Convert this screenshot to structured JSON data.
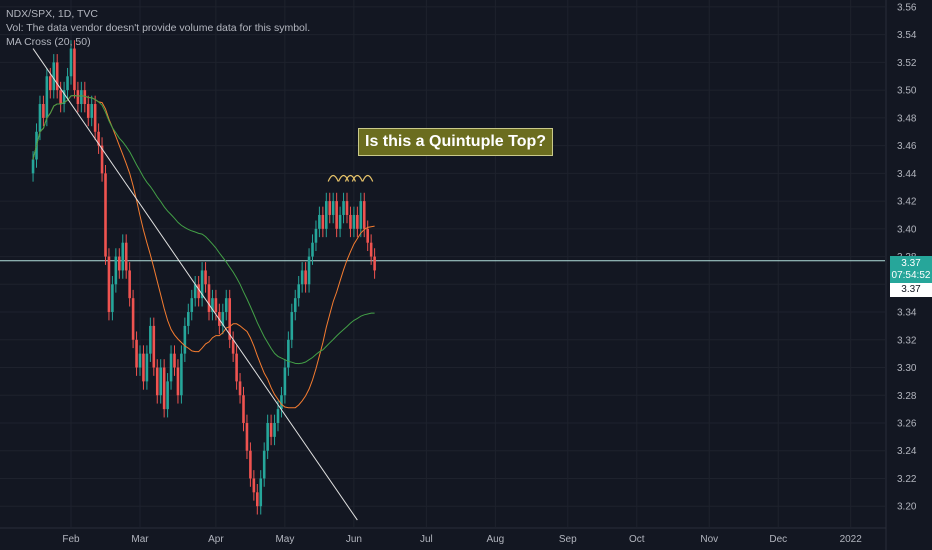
{
  "legend": {
    "symbol_line": "NDX/SPX, 1D, TVC",
    "volume_line": "Vol: The data vendor doesn't provide volume data for this symbol.",
    "ma_line": "MA Cross (20, 50)"
  },
  "annotation": {
    "text": "Is this a Quintuple Top?"
  },
  "price_tags": {
    "current": "3.37",
    "countdown": "07:54:52",
    "secondary": "3.37"
  },
  "colors": {
    "background": "#131722",
    "grid": "#1e222d",
    "up": "#26a69a",
    "down": "#ef5350",
    "ma_fast": "#f57c30",
    "ma_slow": "#43a047",
    "trendline": "#e0e0e0",
    "price_line": "#b2dfdb"
  },
  "chart_data": {
    "type": "candlestick",
    "title": "NDX/SPX, 1D, TVC",
    "y_axis": {
      "range": [
        3.185,
        3.565
      ],
      "ticks": [
        "3.56",
        "3.54",
        "3.52",
        "3.50",
        "3.48",
        "3.46",
        "3.44",
        "3.42",
        "3.40",
        "3.38",
        "3.36",
        "3.34",
        "3.32",
        "3.30",
        "3.28",
        "3.26",
        "3.24",
        "3.22",
        "3.20"
      ]
    },
    "x_axis": {
      "ticks": [
        {
          "label": "Feb",
          "day": 20
        },
        {
          "label": "Mar",
          "day": 40
        },
        {
          "label": "Apr",
          "day": 62
        },
        {
          "label": "May",
          "day": 82
        },
        {
          "label": "Jun",
          "day": 102
        },
        {
          "label": "Jul",
          "day": 123
        },
        {
          "label": "Aug",
          "day": 143
        },
        {
          "label": "Sep",
          "day": 164
        },
        {
          "label": "Oct",
          "day": 184
        },
        {
          "label": "Nov",
          "day": 205
        },
        {
          "label": "Dec",
          "day": 225
        },
        {
          "label": "2022",
          "day": 246
        }
      ]
    },
    "closes": [
      [
        9,
        3.45
      ],
      [
        10,
        3.47
      ],
      [
        11,
        3.49
      ],
      [
        12,
        3.48
      ],
      [
        13,
        3.51
      ],
      [
        14,
        3.5
      ],
      [
        15,
        3.52
      ],
      [
        16,
        3.5
      ],
      [
        17,
        3.49
      ],
      [
        18,
        3.5
      ],
      [
        19,
        3.51
      ],
      [
        20,
        3.53
      ],
      [
        21,
        3.5
      ],
      [
        22,
        3.49
      ],
      [
        23,
        3.5
      ],
      [
        24,
        3.49
      ],
      [
        25,
        3.48
      ],
      [
        26,
        3.49
      ],
      [
        27,
        3.47
      ],
      [
        28,
        3.46
      ],
      [
        29,
        3.44
      ],
      [
        30,
        3.38
      ],
      [
        31,
        3.34
      ],
      [
        32,
        3.36
      ],
      [
        33,
        3.38
      ],
      [
        34,
        3.37
      ],
      [
        35,
        3.39
      ],
      [
        36,
        3.37
      ],
      [
        37,
        3.35
      ],
      [
        38,
        3.32
      ],
      [
        39,
        3.3
      ],
      [
        40,
        3.31
      ],
      [
        41,
        3.29
      ],
      [
        42,
        3.31
      ],
      [
        43,
        3.33
      ],
      [
        44,
        3.3
      ],
      [
        45,
        3.28
      ],
      [
        46,
        3.3
      ],
      [
        47,
        3.27
      ],
      [
        48,
        3.29
      ],
      [
        49,
        3.31
      ],
      [
        50,
        3.3
      ],
      [
        51,
        3.28
      ],
      [
        52,
        3.31
      ],
      [
        53,
        3.33
      ],
      [
        54,
        3.34
      ],
      [
        55,
        3.35
      ],
      [
        56,
        3.36
      ],
      [
        57,
        3.35
      ],
      [
        58,
        3.37
      ],
      [
        59,
        3.36
      ],
      [
        60,
        3.34
      ],
      [
        61,
        3.35
      ],
      [
        62,
        3.34
      ],
      [
        63,
        3.33
      ],
      [
        64,
        3.34
      ],
      [
        65,
        3.35
      ],
      [
        66,
        3.32
      ],
      [
        67,
        3.31
      ],
      [
        68,
        3.29
      ],
      [
        69,
        3.28
      ],
      [
        70,
        3.26
      ],
      [
        71,
        3.24
      ],
      [
        72,
        3.22
      ],
      [
        73,
        3.21
      ],
      [
        74,
        3.2
      ],
      [
        75,
        3.22
      ],
      [
        76,
        3.24
      ],
      [
        77,
        3.26
      ],
      [
        78,
        3.25
      ],
      [
        79,
        3.26
      ],
      [
        80,
        3.27
      ],
      [
        81,
        3.28
      ],
      [
        82,
        3.3
      ],
      [
        83,
        3.32
      ],
      [
        84,
        3.34
      ],
      [
        85,
        3.35
      ],
      [
        86,
        3.36
      ],
      [
        87,
        3.37
      ],
      [
        88,
        3.36
      ],
      [
        89,
        3.38
      ],
      [
        90,
        3.39
      ],
      [
        91,
        3.4
      ],
      [
        92,
        3.41
      ],
      [
        93,
        3.4
      ],
      [
        94,
        3.42
      ],
      [
        95,
        3.41
      ],
      [
        96,
        3.42
      ],
      [
        97,
        3.4
      ],
      [
        98,
        3.41
      ],
      [
        99,
        3.42
      ],
      [
        100,
        3.41
      ],
      [
        101,
        3.4
      ],
      [
        102,
        3.41
      ],
      [
        103,
        3.4
      ],
      [
        104,
        3.42
      ],
      [
        105,
        3.4
      ],
      [
        106,
        3.39
      ],
      [
        107,
        3.38
      ],
      [
        108,
        3.37
      ]
    ],
    "ma_fast": {
      "name": "MA 20"
    },
    "ma_slow": {
      "name": "MA 50"
    },
    "horizontal_line": 3.377,
    "trendline": {
      "from": [
        9,
        3.53
      ],
      "to": [
        103,
        3.19
      ]
    }
  }
}
